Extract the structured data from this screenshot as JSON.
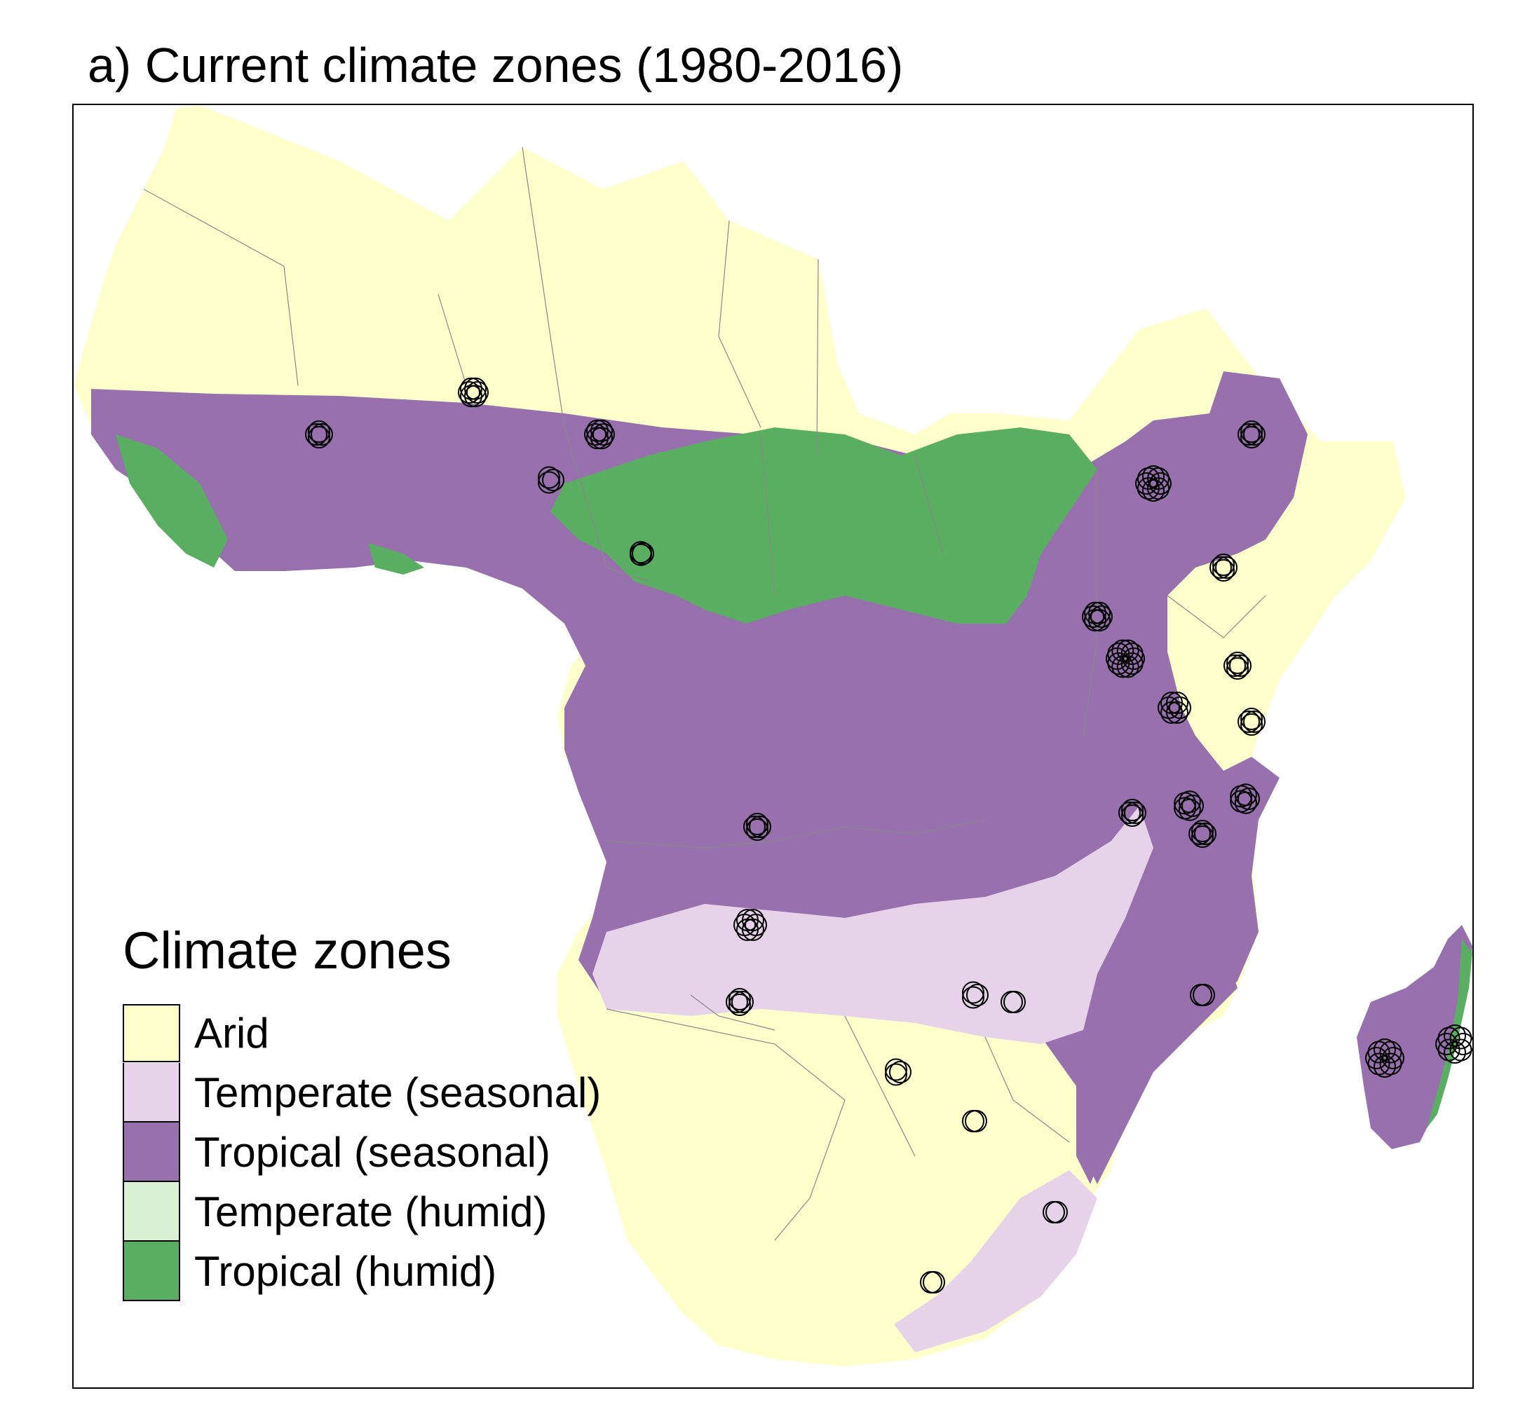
{
  "title": "a) Current climate zones (1980-2016)",
  "legend": {
    "title": "Climate zones",
    "items": [
      {
        "label": "Arid",
        "color": "#ffffcc"
      },
      {
        "label": "Temperate (seasonal)",
        "color": "#e6d3ea"
      },
      {
        "label": "Tropical (seasonal)",
        "color": "#9870ae"
      },
      {
        "label": "Temperate (humid)",
        "color": "#d9f0d3"
      },
      {
        "label": "Tropical (humid)",
        "color": "#5aae61"
      }
    ]
  },
  "map": {
    "region": "Sub-Saharan Africa",
    "marker_style": "open-circle",
    "marker_color": "#000000",
    "border_color": "#888888"
  }
}
